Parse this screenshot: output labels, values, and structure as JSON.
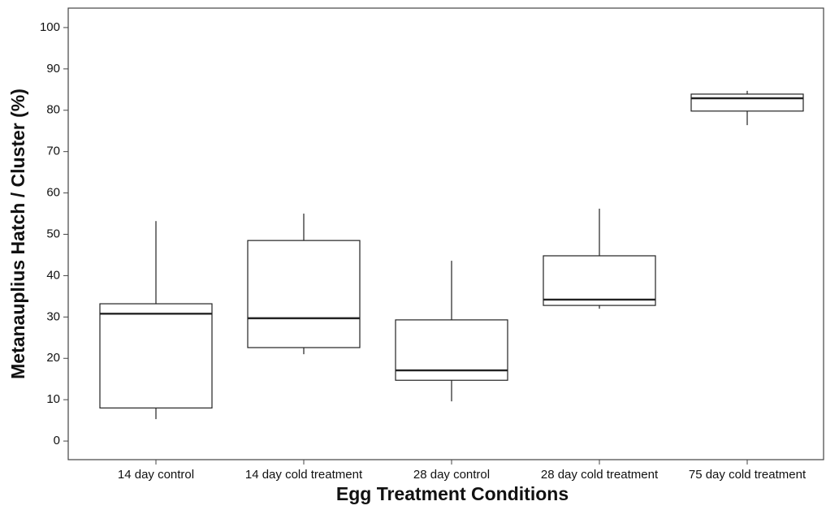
{
  "chart_data": {
    "type": "box",
    "x_label": "Egg Treatment Conditions",
    "y_label": "Metanauplius Hatch / Cluster (%)",
    "categories": [
      "14 day control",
      "14 day cold treatment",
      "28 day control",
      "28 day cold treatment",
      "75 day cold treatment"
    ],
    "low": [
      5.3,
      21.0,
      9.6,
      32.0,
      76.4
    ],
    "q1": [
      8.0,
      22.6,
      14.7,
      32.8,
      79.8
    ],
    "median": [
      30.8,
      29.7,
      17.1,
      34.2,
      82.9
    ],
    "q3": [
      33.2,
      48.5,
      29.3,
      44.8,
      83.9
    ],
    "high": [
      53.2,
      55.0,
      43.6,
      56.2,
      84.7
    ],
    "color": "#222222",
    "ylim": [
      -4.5,
      104.7
    ],
    "yticks": [
      0,
      10,
      20,
      30,
      40,
      50,
      60,
      70,
      80,
      90,
      100
    ]
  }
}
